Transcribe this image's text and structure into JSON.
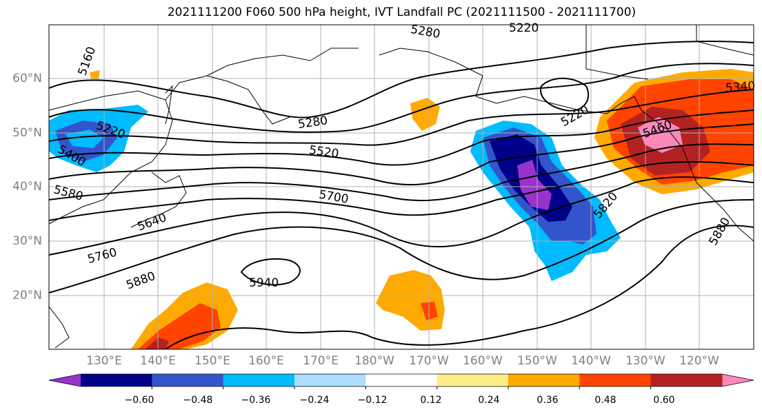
{
  "title": "2021111200 F060 500 hPa height, IVT Landfall PC (2021111500 - 2021111700)",
  "lat_labels": [
    "60°N",
    "50°N",
    "40°N",
    "30°N",
    "20°N"
  ],
  "lon_labels": [
    "130°E",
    "140°E",
    "150°E",
    "160°E",
    "170°E",
    "180°W",
    "170°W",
    "160°W",
    "150°W",
    "140°W",
    "130°W",
    "120°W"
  ],
  "contour_labels": [
    "5160",
    "5280",
    "5220",
    "5220",
    "5280",
    "5220",
    "5400",
    "5520",
    "5340",
    "5580",
    "5700",
    "5460",
    "5640",
    "5820",
    "5760",
    "5880",
    "5880",
    "5940"
  ],
  "colorbar": {
    "colors": [
      "#9933cc",
      "#000088",
      "#3355cc",
      "#00bbff",
      "#aaddff",
      "#ffffff",
      "#ffee88",
      "#ffaa00",
      "#ff4400",
      "#b22222",
      "#ff88bb"
    ],
    "tick_labels": [
      "−0.60",
      "−0.48",
      "−0.36",
      "−0.24",
      "−0.12",
      "0.12",
      "0.24",
      "0.36",
      "0.48",
      "0.60"
    ]
  }
}
